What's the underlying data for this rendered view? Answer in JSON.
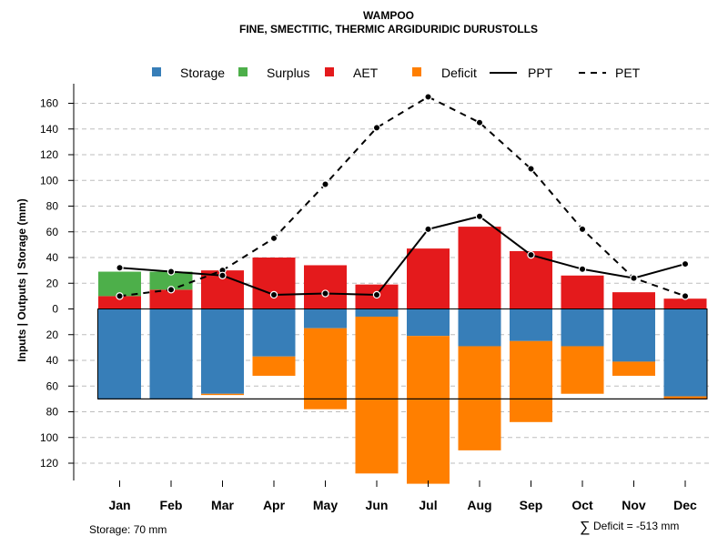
{
  "chart_data": {
    "type": "bar",
    "title": "WAMPOO",
    "subtitle": "FINE, SMECTITIC, THERMIC ARGIDURIDIC DURUSTOLLS",
    "ylabel": "Inputs | Outputs | Storage    (mm)",
    "ylim": [
      -130,
      170
    ],
    "y_ticks": [
      160,
      140,
      120,
      100,
      80,
      60,
      40,
      20,
      0,
      -20,
      -40,
      -60,
      -80,
      -100,
      -120
    ],
    "grid": true,
    "legend_position": "top",
    "categories": [
      "Jan",
      "Feb",
      "Mar",
      "Apr",
      "May",
      "Jun",
      "Jul",
      "Aug",
      "Sep",
      "Oct",
      "Nov",
      "Dec"
    ],
    "series": [
      {
        "name": "AET",
        "color": "#E41A1C",
        "values": [
          10,
          15,
          30,
          40,
          34,
          19,
          47,
          64,
          45,
          26,
          13,
          8
        ]
      },
      {
        "name": "Surplus",
        "color": "#4DAF4A",
        "values": [
          19,
          14,
          0,
          0,
          0,
          0,
          0,
          0,
          0,
          0,
          0,
          0
        ]
      },
      {
        "name": "Storage",
        "color": "#377EB8",
        "values": [
          70,
          70,
          66,
          37,
          15,
          6,
          21,
          29,
          25,
          29,
          41,
          68
        ]
      },
      {
        "name": "Deficit",
        "color": "#FF7F00",
        "values": [
          0,
          0,
          1,
          15,
          63,
          122,
          115,
          81,
          63,
          37,
          11,
          2
        ]
      },
      {
        "name": "PPT",
        "color": "#000000",
        "style": "solid",
        "values": [
          32,
          29,
          26,
          11,
          12,
          11,
          62,
          72,
          42,
          31,
          24,
          35
        ]
      },
      {
        "name": "PET",
        "color": "#000000",
        "style": "dashed",
        "values": [
          10,
          15,
          30,
          55,
          97,
          141,
          165,
          145,
          109,
          62,
          24,
          10
        ]
      }
    ],
    "storage_capacity": 70,
    "legend": [
      "Storage",
      "Surplus",
      "AET",
      "Deficit",
      "PPT",
      "PET"
    ]
  },
  "footer": {
    "storage_label": "Storage: 70 mm",
    "deficit_label": "Deficit = -513 mm",
    "sum_symbol": "∑"
  }
}
